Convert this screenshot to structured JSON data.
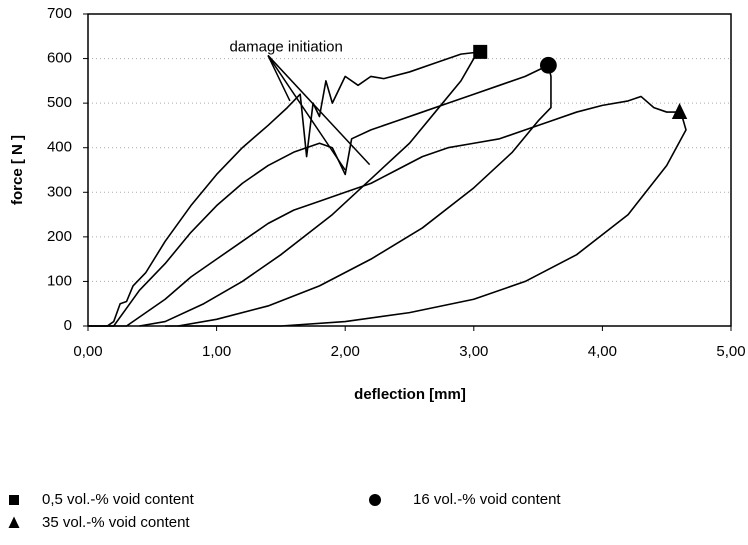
{
  "chart_data": {
    "type": "line",
    "xlabel": "deflection [mm]",
    "ylabel": "force [ N ]",
    "xlim": [
      0,
      5
    ],
    "ylim": [
      0,
      700
    ],
    "xticks": [
      {
        "value": 0,
        "label": "0,00"
      },
      {
        "value": 1,
        "label": "1,00"
      },
      {
        "value": 2,
        "label": "2,00"
      },
      {
        "value": 3,
        "label": "3,00"
      },
      {
        "value": 4,
        "label": "4,00"
      },
      {
        "value": 5,
        "label": "5,00"
      }
    ],
    "yticks": [
      0,
      100,
      200,
      300,
      400,
      500,
      600,
      700
    ],
    "grid": true,
    "annotation": {
      "text": "damage initiation",
      "x": 1.1,
      "y": 625,
      "points": [
        {
          "x": 1.57,
          "y": 505
        },
        {
          "x": 2.0,
          "y": 350
        },
        {
          "x": 2.19,
          "y": 362
        }
      ]
    },
    "series": [
      {
        "name": "0,5 vol.-% void content",
        "color": "#000000",
        "marker": "square",
        "x": [
          0,
          0.15,
          0.2,
          0.25,
          0.3,
          0.35,
          0.45,
          0.6,
          0.8,
          1.0,
          1.2,
          1.4,
          1.55,
          1.65,
          1.7,
          1.75,
          1.8,
          1.85,
          1.9,
          2.0,
          2.1,
          2.2,
          2.3,
          2.5,
          2.7,
          2.9,
          3.05
        ],
        "values": [
          0,
          0,
          10,
          50,
          55,
          90,
          120,
          190,
          270,
          340,
          400,
          450,
          490,
          520,
          380,
          500,
          470,
          550,
          500,
          560,
          540,
          560,
          555,
          570,
          590,
          610,
          615
        ],
        "unload_x": [
          3.05,
          3.0,
          2.9,
          2.7,
          2.5,
          2.2,
          1.9,
          1.5,
          1.2,
          0.9,
          0.6,
          0.4
        ],
        "unload_values": [
          615,
          600,
          550,
          480,
          410,
          330,
          250,
          160,
          100,
          50,
          10,
          0
        ]
      },
      {
        "name": "16 vol.-% void content",
        "color": "#000000",
        "marker": "circle",
        "x": [
          0,
          0.2,
          0.3,
          0.4,
          0.6,
          0.8,
          1.0,
          1.2,
          1.4,
          1.6,
          1.8,
          1.9,
          2.0,
          2.05,
          2.2,
          2.4,
          2.6,
          2.8,
          3.0,
          3.2,
          3.4,
          3.58
        ],
        "values": [
          0,
          0,
          40,
          80,
          140,
          210,
          270,
          320,
          360,
          390,
          410,
          400,
          340,
          420,
          440,
          460,
          480,
          500,
          520,
          540,
          560,
          585
        ],
        "unload_x": [
          3.58,
          3.6,
          3.6,
          3.5,
          3.3,
          3.0,
          2.6,
          2.2,
          1.8,
          1.4,
          1.0,
          0.7
        ],
        "unload_values": [
          585,
          560,
          490,
          460,
          390,
          310,
          220,
          150,
          90,
          45,
          15,
          0
        ]
      },
      {
        "name": "35 vol.-% void content",
        "color": "#000000",
        "marker": "triangle",
        "x": [
          0,
          0.3,
          0.45,
          0.6,
          0.8,
          1.0,
          1.2,
          1.4,
          1.6,
          1.8,
          2.0,
          2.2,
          2.4,
          2.6,
          2.8,
          3.0,
          3.2,
          3.4,
          3.6,
          3.8,
          4.0,
          4.2,
          4.3,
          4.4,
          4.5,
          4.6
        ],
        "values": [
          0,
          0,
          30,
          60,
          110,
          150,
          190,
          230,
          260,
          280,
          300,
          320,
          350,
          380,
          400,
          410,
          420,
          440,
          460,
          480,
          495,
          505,
          515,
          490,
          480,
          480
        ],
        "unload_x": [
          4.6,
          4.62,
          4.65,
          4.5,
          4.2,
          3.8,
          3.4,
          3.0,
          2.5,
          2.0,
          1.5,
          0.6
        ],
        "unload_values": [
          480,
          470,
          440,
          360,
          250,
          160,
          100,
          60,
          30,
          10,
          0,
          0
        ]
      }
    ]
  }
}
